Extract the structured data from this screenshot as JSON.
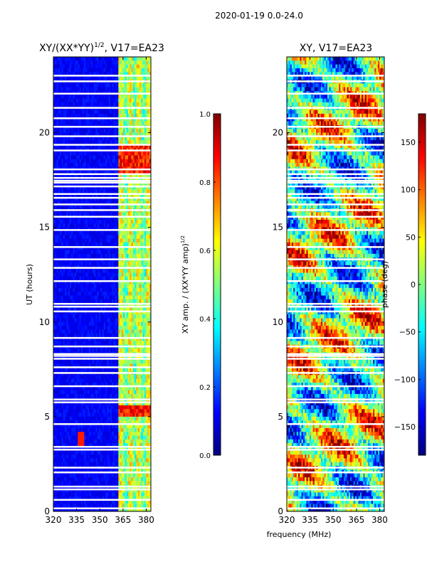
{
  "figure": {
    "suptitle": "2020-01-19 0.0-24.0",
    "xlabel_common": "frequency (MHz)"
  },
  "colors": {
    "jet": [
      "#000080",
      "#0000ff",
      "#0080ff",
      "#00ffff",
      "#80ff80",
      "#ffff00",
      "#ff8000",
      "#ff0000",
      "#800000"
    ],
    "gap": "#ffffff"
  },
  "chart_data": [
    {
      "type": "heatmap",
      "title_main": "XY/(XX*YY)",
      "title_sup": "1/2",
      "title_tail": ", V17=EA23",
      "xlabel": "",
      "ylabel": "UT (hours)",
      "xlim": [
        320,
        383
      ],
      "ylim": [
        0,
        24
      ],
      "xticks": [
        320,
        335,
        350,
        365,
        380
      ],
      "yticks": [
        0,
        5,
        10,
        15,
        20
      ],
      "colorbar": {
        "label": "XY amp. / (XX*YY amp)",
        "label_sup": "1/2",
        "range": [
          0.0,
          1.0
        ],
        "ticks": [
          "0.0",
          "0.2",
          "0.4",
          "0.6",
          "0.8",
          "1.0"
        ]
      },
      "notes": "Mostly low amplitude (~0.1) at 320-362 MHz; bright striped band 362-383 MHz (~0.4-0.6) with peaks near 0.9 around 18-19 h and 5-5.5 h; spot near 338 MHz at ~4 h."
    },
    {
      "type": "heatmap",
      "title": "XY, V17=EA23",
      "xlabel": "frequency (MHz)",
      "ylabel": "",
      "xlim": [
        320,
        383
      ],
      "ylim": [
        0,
        24
      ],
      "xticks": [
        320,
        335,
        350,
        365,
        380
      ],
      "yticks": [
        0,
        5,
        10,
        15,
        20
      ],
      "colorbar": {
        "label": "phase (deg)",
        "range": [
          -180,
          180
        ],
        "ticks": [
          "150",
          "100",
          "50",
          "0",
          "−50",
          "−100",
          "−150"
        ]
      },
      "notes": "Noisy phase pattern spanning full colour range, many horizontal flagged (white) gaps."
    }
  ],
  "gaps_hours": [
    0.15,
    0.6,
    1.15,
    1.3,
    2.05,
    2.3,
    3.25,
    3.4,
    4.6,
    5.75,
    5.9,
    6.6,
    7.3,
    7.6,
    8.05,
    8.2,
    8.3,
    8.7,
    9.15,
    10.55,
    10.8,
    10.95,
    12.15,
    12.85,
    13.3,
    13.95,
    14.85,
    15.55,
    15.9,
    16.2,
    16.55,
    16.75,
    17.15,
    17.35,
    17.45,
    17.6,
    17.8,
    18.05,
    19.05,
    19.35,
    19.8,
    20.3,
    20.75,
    21.3,
    22.05,
    22.7,
    23.0
  ]
}
